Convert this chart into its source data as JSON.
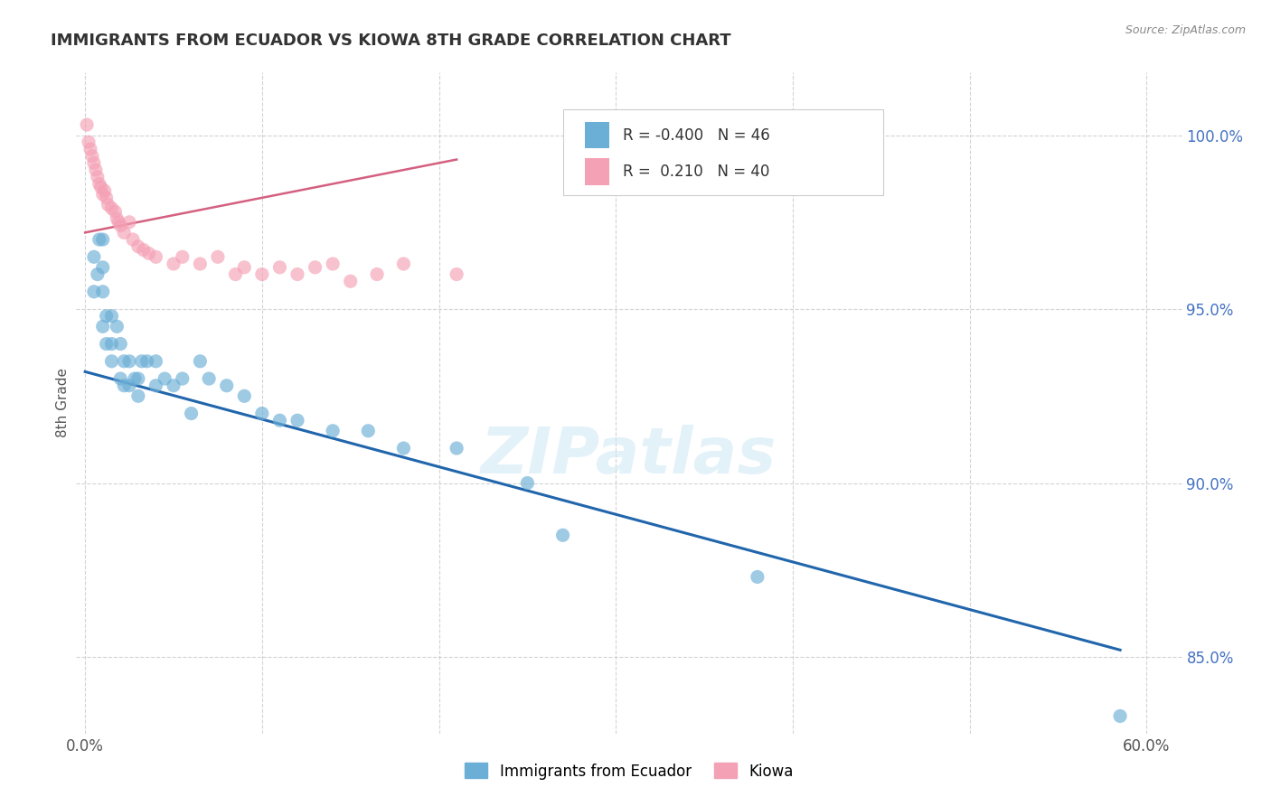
{
  "title": "IMMIGRANTS FROM ECUADOR VS KIOWA 8TH GRADE CORRELATION CHART",
  "source_text": "Source: ZipAtlas.com",
  "ylabel": "8th Grade",
  "xlim": [
    -0.005,
    0.62
  ],
  "ylim": [
    0.828,
    1.018
  ],
  "xticks": [
    0.0,
    0.1,
    0.2,
    0.3,
    0.4,
    0.5,
    0.6
  ],
  "xticklabels": [
    "0.0%",
    "",
    "",
    "",
    "",
    "",
    "60.0%"
  ],
  "ytick_positions": [
    0.85,
    0.9,
    0.95,
    1.0
  ],
  "yticklabels": [
    "85.0%",
    "90.0%",
    "95.0%",
    "100.0%"
  ],
  "blue_color": "#6baed6",
  "pink_color": "#f4a0b5",
  "blue_line_color": "#2166ac",
  "pink_line_color": "#d46080",
  "blue_R": -0.4,
  "blue_N": 46,
  "pink_R": 0.21,
  "pink_N": 40,
  "legend_label_blue": "Immigrants from Ecuador",
  "legend_label_pink": "Kiowa",
  "watermark": "ZIPatlas",
  "background_color": "#ffffff",
  "grid_color": "#c8c8c8",
  "blue_scatter_x": [
    0.005,
    0.005,
    0.007,
    0.008,
    0.01,
    0.01,
    0.01,
    0.01,
    0.012,
    0.012,
    0.015,
    0.015,
    0.015,
    0.018,
    0.02,
    0.02,
    0.022,
    0.022,
    0.025,
    0.025,
    0.028,
    0.03,
    0.03,
    0.032,
    0.035,
    0.04,
    0.04,
    0.045,
    0.05,
    0.055,
    0.06,
    0.065,
    0.07,
    0.08,
    0.09,
    0.1,
    0.11,
    0.12,
    0.14,
    0.16,
    0.18,
    0.21,
    0.25,
    0.27,
    0.38,
    0.585
  ],
  "blue_scatter_y": [
    0.965,
    0.955,
    0.96,
    0.97,
    0.945,
    0.955,
    0.962,
    0.97,
    0.94,
    0.948,
    0.935,
    0.94,
    0.948,
    0.945,
    0.93,
    0.94,
    0.928,
    0.935,
    0.928,
    0.935,
    0.93,
    0.925,
    0.93,
    0.935,
    0.935,
    0.928,
    0.935,
    0.93,
    0.928,
    0.93,
    0.92,
    0.935,
    0.93,
    0.928,
    0.925,
    0.92,
    0.918,
    0.918,
    0.915,
    0.915,
    0.91,
    0.91,
    0.9,
    0.885,
    0.873,
    0.833
  ],
  "pink_scatter_x": [
    0.001,
    0.002,
    0.003,
    0.004,
    0.005,
    0.006,
    0.007,
    0.008,
    0.009,
    0.01,
    0.011,
    0.012,
    0.013,
    0.015,
    0.017,
    0.018,
    0.019,
    0.02,
    0.022,
    0.025,
    0.027,
    0.03,
    0.033,
    0.036,
    0.04,
    0.05,
    0.055,
    0.065,
    0.075,
    0.085,
    0.09,
    0.1,
    0.11,
    0.12,
    0.13,
    0.14,
    0.15,
    0.165,
    0.18,
    0.21
  ],
  "pink_scatter_y": [
    1.003,
    0.998,
    0.996,
    0.994,
    0.992,
    0.99,
    0.988,
    0.986,
    0.985,
    0.983,
    0.984,
    0.982,
    0.98,
    0.979,
    0.978,
    0.976,
    0.975,
    0.974,
    0.972,
    0.975,
    0.97,
    0.968,
    0.967,
    0.966,
    0.965,
    0.963,
    0.965,
    0.963,
    0.965,
    0.96,
    0.962,
    0.96,
    0.962,
    0.96,
    0.962,
    0.963,
    0.958,
    0.96,
    0.963,
    0.96
  ],
  "blue_trendline_x": [
    0.0,
    0.585
  ],
  "blue_trendline_y": [
    0.932,
    0.852
  ],
  "pink_trendline_x": [
    0.0,
    0.21
  ],
  "pink_trendline_y": [
    0.972,
    0.993
  ]
}
